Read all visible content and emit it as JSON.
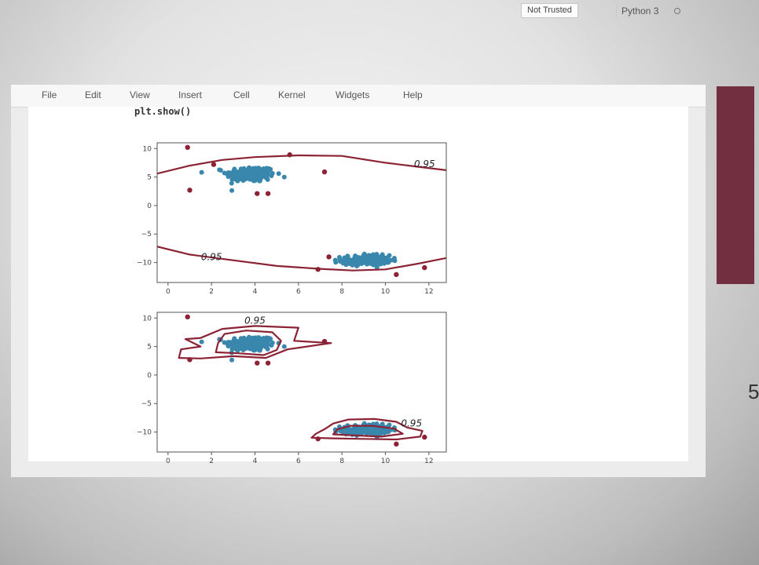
{
  "menu": {
    "items": [
      {
        "name": "file",
        "label": "File"
      },
      {
        "name": "edit",
        "label": "Edit"
      },
      {
        "name": "view",
        "label": "View"
      },
      {
        "name": "insert",
        "label": "Insert"
      },
      {
        "name": "cell",
        "label": "Cell"
      },
      {
        "name": "kernel",
        "label": "Kernel"
      },
      {
        "name": "widgets",
        "label": "Widgets"
      },
      {
        "name": "help",
        "label": "Help"
      }
    ],
    "trusted_label": "Not Trusted",
    "kernel_name": "Python 3"
  },
  "cell": {
    "code": "plt.show()"
  },
  "side": {
    "glyph": "5"
  },
  "colors": {
    "accent": "#722f40",
    "point_blue": "#3a87ad",
    "point_red": "#8b2335",
    "contour": "#8b2335"
  },
  "chart_data": [
    {
      "type": "scatter",
      "xlim": [
        -0.5,
        12.8
      ],
      "ylim": [
        -13.5,
        11
      ],
      "xticks": [
        0,
        2,
        4,
        6,
        8,
        10,
        12
      ],
      "yticks": [
        -10,
        -5,
        0,
        5,
        10
      ],
      "grid": false,
      "clusters": [
        {
          "center": [
            3.8,
            5.5
          ],
          "spread": [
            0.9,
            1.1
          ],
          "count": 220
        },
        {
          "center": [
            9.1,
            -9.6
          ],
          "spread": [
            0.9,
            0.7
          ],
          "count": 170
        }
      ],
      "outliers": [
        [
          0.9,
          10.2
        ],
        [
          1.0,
          2.7
        ],
        [
          2.1,
          7.2
        ],
        [
          4.1,
          2.1
        ],
        [
          4.6,
          2.1
        ],
        [
          7.2,
          5.9
        ],
        [
          5.6,
          8.9
        ],
        [
          7.4,
          -9.0
        ],
        [
          10.5,
          -12.1
        ],
        [
          11.8,
          -10.9
        ],
        [
          6.9,
          -11.2
        ]
      ],
      "contours": [
        {
          "level_label": "0.95",
          "points": [
            [
              -0.5,
              5.6
            ],
            [
              1,
              7
            ],
            [
              2.5,
              8
            ],
            [
              4,
              8.5
            ],
            [
              6,
              8.8
            ],
            [
              8,
              8.7
            ],
            [
              10,
              7.5
            ],
            [
              11.5,
              6.8
            ],
            [
              12.8,
              6.2
            ]
          ]
        },
        {
          "level_label": "0.95",
          "points": [
            [
              -0.5,
              -7.2
            ],
            [
              1,
              -8.6
            ],
            [
              3,
              -9.6
            ],
            [
              5,
              -10.6
            ],
            [
              7,
              -11.1
            ],
            [
              8.5,
              -11.4
            ],
            [
              10,
              -11.2
            ],
            [
              11.5,
              -10.2
            ],
            [
              12.8,
              -9.2
            ]
          ]
        }
      ],
      "contour_labels": [
        {
          "text": "0.95",
          "x": 11.8,
          "y": 6.7
        },
        {
          "text": "0.95",
          "x": 2.0,
          "y": -9.6
        }
      ]
    },
    {
      "type": "scatter",
      "xlim": [
        -0.5,
        12.8
      ],
      "ylim": [
        -13.5,
        11
      ],
      "xticks": [
        0,
        2,
        4,
        6,
        8,
        10,
        12
      ],
      "yticks": [
        -10,
        -5,
        0,
        5,
        10
      ],
      "grid": false,
      "clusters": [
        {
          "center": [
            3.8,
            5.5
          ],
          "spread": [
            0.9,
            1.1
          ],
          "count": 220
        },
        {
          "center": [
            9.1,
            -9.6
          ],
          "spread": [
            0.9,
            0.7
          ],
          "count": 170
        }
      ],
      "outliers": [
        [
          0.9,
          10.2
        ],
        [
          1.0,
          2.7
        ],
        [
          4.1,
          2.1
        ],
        [
          4.6,
          2.1
        ],
        [
          7.2,
          5.9
        ],
        [
          10.5,
          -12.1
        ],
        [
          11.8,
          -10.9
        ],
        [
          6.9,
          -11.2
        ]
      ],
      "contours": [
        {
          "level_label": "0.95",
          "points": [
            [
              0.5,
              3
            ],
            [
              1.5,
              2.9
            ],
            [
              3,
              3.3
            ],
            [
              4.5,
              3
            ],
            [
              5.5,
              4.5
            ],
            [
              7.5,
              5.6
            ],
            [
              5.8,
              6
            ],
            [
              6,
              8.3
            ],
            [
              4,
              8.6
            ],
            [
              2.5,
              8.1
            ],
            [
              1.5,
              6.5
            ],
            [
              0.8,
              6.3
            ],
            [
              1.5,
              5
            ],
            [
              0.6,
              4.5
            ]
          ]
        },
        {
          "level_label": "0.95",
          "points": [
            [
              2.2,
              4
            ],
            [
              3.3,
              3.8
            ],
            [
              4.4,
              3.5
            ],
            [
              5,
              4.4
            ],
            [
              5.2,
              6
            ],
            [
              4.8,
              7.5
            ],
            [
              3.6,
              7.8
            ],
            [
              2.6,
              7.2
            ],
            [
              2.3,
              5.6
            ]
          ]
        },
        {
          "level_label": "0.95",
          "points": [
            [
              6.6,
              -11
            ],
            [
              7.6,
              -11.1
            ],
            [
              9,
              -11.2
            ],
            [
              10.5,
              -11.3
            ],
            [
              11.6,
              -10.8
            ],
            [
              11.7,
              -9.8
            ],
            [
              11,
              -9.2
            ],
            [
              10.5,
              -8.2
            ],
            [
              9.5,
              -7.7
            ],
            [
              8.3,
              -7.8
            ],
            [
              7.6,
              -8.5
            ],
            [
              7.2,
              -9.5
            ],
            [
              6.8,
              -10.3
            ]
          ]
        },
        {
          "level_label": "0.95",
          "points": [
            [
              7.6,
              -10.4
            ],
            [
              8.6,
              -10.6
            ],
            [
              9.8,
              -10.8
            ],
            [
              10.8,
              -10.3
            ],
            [
              10.4,
              -9.4
            ],
            [
              9.4,
              -8.9
            ],
            [
              8.4,
              -8.9
            ],
            [
              7.8,
              -9.5
            ]
          ]
        }
      ],
      "contour_labels": [
        {
          "text": "0.95",
          "x": 4.0,
          "y": 9.0
        },
        {
          "text": "0.95",
          "x": 11.2,
          "y": -9.0
        }
      ]
    }
  ]
}
